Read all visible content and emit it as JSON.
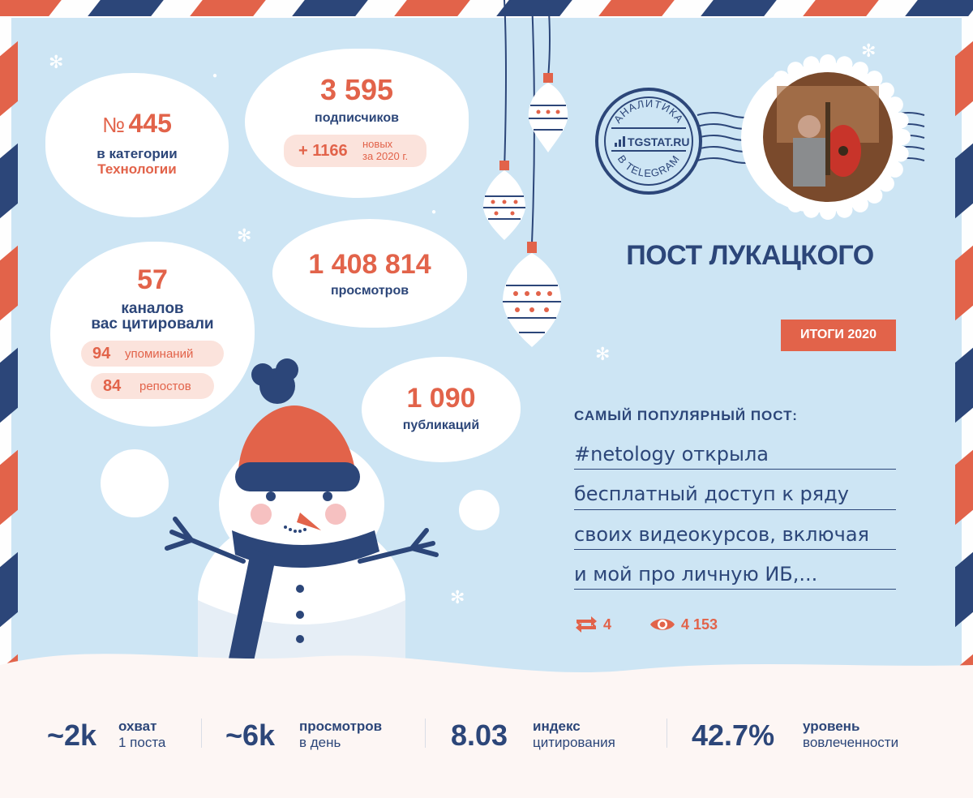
{
  "rank": {
    "prefix": "№",
    "number": "445",
    "label_line1": "в категории",
    "category": "Технологии"
  },
  "subscribers": {
    "number": "3 595",
    "label": "подписчиков",
    "growth_value": "+ 1166",
    "growth_label_line1": "новых",
    "growth_label_line2": "за 2020 г."
  },
  "citations": {
    "number": "57",
    "label_line1": "каналов",
    "label_line2": "вас цитировали",
    "mentions_value": "94",
    "mentions_label": "упоминаний",
    "reposts_value": "84",
    "reposts_label": "репостов"
  },
  "views": {
    "number": "1 408 814",
    "label": "просмотров"
  },
  "publications": {
    "number": "1 090",
    "label": "публикаций"
  },
  "stamp": {
    "top_text": "АНАЛИТИКА",
    "brand": "TGSTAT.RU",
    "bottom_text": "В TELEGRAM"
  },
  "channel_title": "ПОСТ ЛУКАЦКОГО",
  "badge": "ИТОГИ 2020",
  "popular_post": {
    "heading": "САМЫЙ ПОПУЛЯРНЫЙ ПОСТ:",
    "lines": [
      "#netology открыла",
      "бесплатный доступ к ряду",
      "своих видеокурсов, включая",
      "и мой про личную ИБ,..."
    ],
    "reposts": "4",
    "views": "4 153",
    "repost_icon": "repost-icon",
    "views_icon": "eye-icon"
  },
  "bottom_stats": [
    {
      "value": "~2k",
      "label_line1": "охват",
      "label_line2": "1 поста"
    },
    {
      "value": "~6k",
      "label_line1": "просмотров",
      "label_line2": "в день"
    },
    {
      "value": "8.03",
      "label_line1": "индекс",
      "label_line2": "цитирования"
    },
    {
      "value": "42.7%",
      "label_line1": "уровень",
      "label_line2": "вовлеченности"
    }
  ],
  "colors": {
    "accent_orange": "#e2634a",
    "navy": "#2c4679",
    "sky_blue": "#cde5f4",
    "pill_bg": "#fbe3dc"
  }
}
